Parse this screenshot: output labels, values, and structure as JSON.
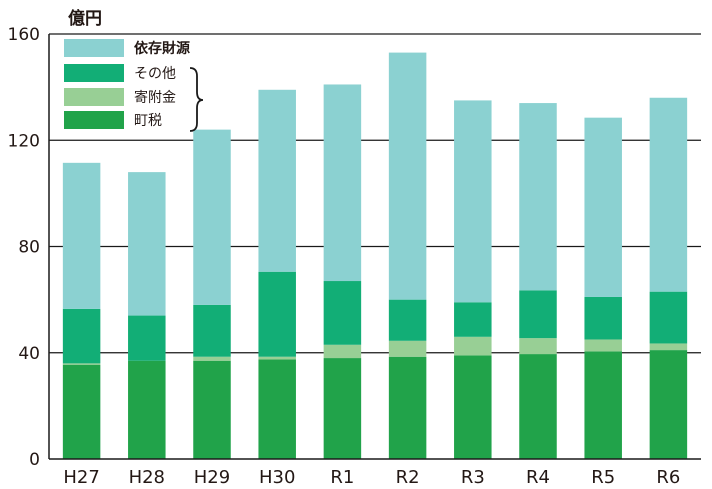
{
  "chart_data": {
    "type": "bar",
    "stacked": true,
    "unit_label": "億円",
    "categories": [
      "H27",
      "H28",
      "H29",
      "H30",
      "R1",
      "R2",
      "R3",
      "R4",
      "R5",
      "R6"
    ],
    "series": [
      {
        "name": "町税",
        "color": "#21a34a",
        "values": [
          35.5,
          37,
          37,
          37.5,
          38,
          38.5,
          39,
          39.5,
          40.5,
          41
        ]
      },
      {
        "name": "寄附金",
        "color": "#98cf95",
        "values": [
          0.5,
          0,
          1.5,
          1,
          5,
          6,
          7,
          6,
          4.5,
          2.5
        ]
      },
      {
        "name": "その他",
        "color": "#12ae76",
        "values": [
          20.5,
          17,
          19.5,
          32,
          24,
          15.5,
          13,
          18,
          16,
          19.5
        ]
      },
      {
        "name": "依存財源",
        "color": "#8bd1d1",
        "values": [
          55,
          54,
          66,
          68.5,
          74,
          93,
          76,
          70.5,
          67.5,
          73
        ]
      }
    ],
    "ylim": [
      0,
      160
    ],
    "yticks": [
      0,
      40,
      80,
      120,
      160
    ],
    "grid": true,
    "legend": {
      "position": "top-left",
      "entries": [
        {
          "label": "依存財源",
          "color": "#8bd1d1",
          "bold": true
        },
        {
          "label": "その他",
          "color": "#12ae76"
        },
        {
          "label": "寄附金",
          "color": "#98cf95"
        },
        {
          "label": "町税",
          "color": "#21a34a"
        }
      ],
      "grouped": [
        "その他",
        "寄附金",
        "町税"
      ]
    }
  }
}
